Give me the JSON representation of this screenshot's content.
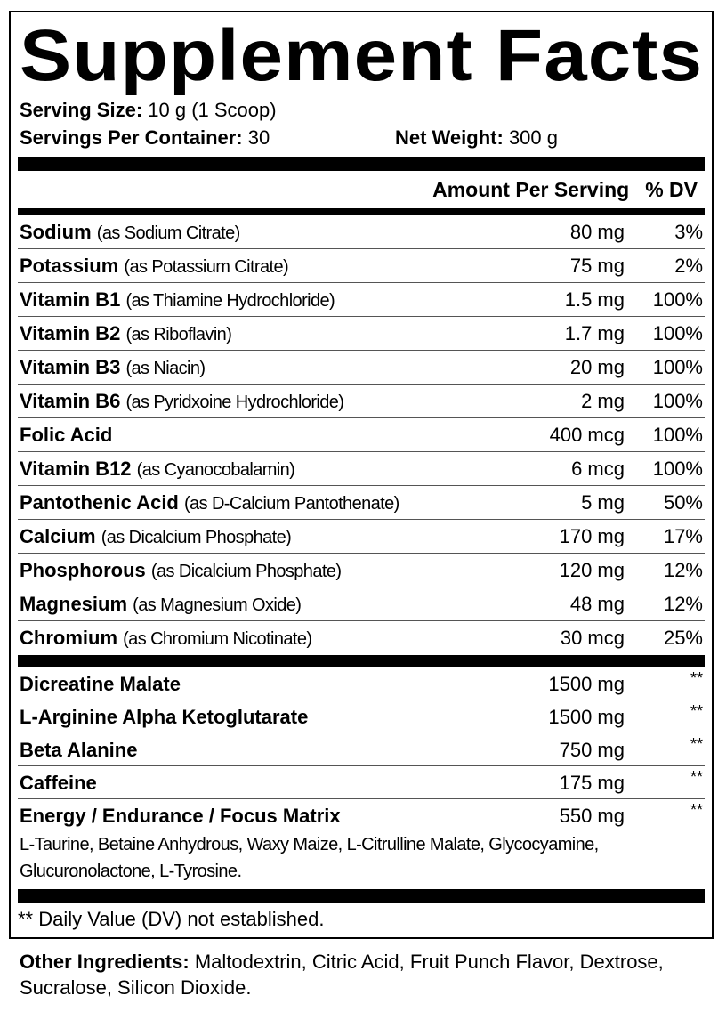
{
  "title": "Supplement Facts",
  "serving": {
    "size_label": "Serving Size:",
    "size_value": "10 g (1 Scoop)",
    "per_container_label": "Servings Per Container:",
    "per_container_value": "30",
    "net_weight_label": "Net Weight:",
    "net_weight_value": "300 g"
  },
  "header": {
    "amount": "Amount Per Serving",
    "dv": "% DV"
  },
  "nutrients": [
    {
      "name": "Sodium",
      "source": "(as Sodium Citrate)",
      "amount": "80 mg",
      "dv": "3%"
    },
    {
      "name": "Potassium",
      "source": "(as Potassium Citrate)",
      "amount": "75 mg",
      "dv": "2%"
    },
    {
      "name": "Vitamin B1",
      "source": "(as Thiamine Hydrochloride)",
      "amount": "1.5 mg",
      "dv": "100%"
    },
    {
      "name": "Vitamin B2",
      "source": "(as Riboflavin)",
      "amount": "1.7 mg",
      "dv": "100%"
    },
    {
      "name": "Vitamin B3",
      "source": "(as Niacin)",
      "amount": "20 mg",
      "dv": "100%"
    },
    {
      "name": "Vitamin B6",
      "source": "(as Pyridxoine Hydrochloride)",
      "amount": "2 mg",
      "dv": "100%"
    },
    {
      "name": "Folic Acid",
      "source": "",
      "amount": "400 mcg",
      "dv": "100%"
    },
    {
      "name": "Vitamin B12",
      "source": "(as Cyanocobalamin)",
      "amount": "6 mcg",
      "dv": "100%"
    },
    {
      "name": "Pantothenic Acid",
      "source": "(as D-Calcium Pantothenate)",
      "amount": "5 mg",
      "dv": "50%"
    },
    {
      "name": "Calcium",
      "source": "(as Dicalcium Phosphate)",
      "amount": "170 mg",
      "dv": "17%"
    },
    {
      "name": "Phosphorous",
      "source": "(as Dicalcium Phosphate)",
      "amount": "120 mg",
      "dv": "12%"
    },
    {
      "name": "Magnesium",
      "source": "(as Magnesium Oxide)",
      "amount": "48 mg",
      "dv": "12%"
    },
    {
      "name": "Chromium",
      "source": "(as Chromium Nicotinate)",
      "amount": "30 mcg",
      "dv": "25%"
    }
  ],
  "other_actives": [
    {
      "name": "Dicreatine Malate",
      "amount": "1500 mg",
      "dv": "**"
    },
    {
      "name": "L-Arginine Alpha Ketoglutarate",
      "amount": "1500 mg",
      "dv": "**"
    },
    {
      "name": "Beta Alanine",
      "amount": "750 mg",
      "dv": "**"
    },
    {
      "name": "Caffeine",
      "amount": "175 mg",
      "dv": "**"
    },
    {
      "name": "Energy / Endurance / Focus Matrix",
      "amount": "550 mg",
      "dv": "**"
    }
  ],
  "matrix_description": "L-Taurine, Betaine Anhydrous, Waxy Maize, L-Citrulline Malate, Glycocyamine, Glucuronolactone, L-Tyrosine.",
  "footnote": "** Daily Value (DV) not established.",
  "other_ingredients": {
    "label": "Other Ingredients:",
    "text": "Maltodextrin, Citric Acid, Fruit Punch Flavor, Dextrose, Sucralose, Silicon Dioxide."
  }
}
